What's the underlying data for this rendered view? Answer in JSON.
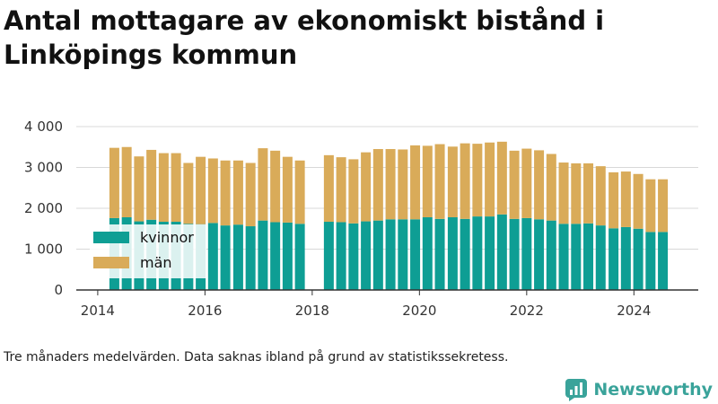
{
  "title": "Antal mottagare av ekonomiskt bistånd i Linköpings kommun",
  "footnote": "Tre månaders medelvärden. Data saknas ibland på grund av statistikssekretess.",
  "brand": {
    "name": "Newsworthy"
  },
  "colors": {
    "kvinnor": "#0e9e94",
    "man": "#d9ab59",
    "grid": "#d8d8d8",
    "axis": "#333333",
    "brand": "#3aa39a"
  },
  "chart_data": {
    "type": "bar",
    "stacked": true,
    "xlim": [
      2013.6,
      2025.2
    ],
    "ylim": [
      0,
      4000
    ],
    "xticks": [
      2014,
      2016,
      2018,
      2020,
      2022,
      2024
    ],
    "yticks": [
      {
        "value": 0,
        "label": "0"
      },
      {
        "value": 1000,
        "label": "1 000"
      },
      {
        "value": 2000,
        "label": "2 000"
      },
      {
        "value": 3000,
        "label": "3 000"
      },
      {
        "value": 4000,
        "label": "4 000"
      }
    ],
    "grid": true,
    "legend_position": "left",
    "x": [
      2014.31,
      2014.54,
      2014.77,
      2015.0,
      2015.23,
      2015.46,
      2015.69,
      2015.92,
      2016.15,
      2016.38,
      2016.62,
      2016.85,
      2017.08,
      2017.31,
      2017.54,
      2017.77,
      2018.31,
      2018.54,
      2018.77,
      2019.0,
      2019.23,
      2019.46,
      2019.69,
      2019.92,
      2020.15,
      2020.38,
      2020.62,
      2020.85,
      2021.08,
      2021.31,
      2021.54,
      2021.77,
      2022.0,
      2022.23,
      2022.46,
      2022.69,
      2022.92,
      2023.15,
      2023.38,
      2023.62,
      2023.85,
      2024.08,
      2024.31,
      2024.54
    ],
    "series": [
      {
        "name": "kvinnor",
        "values": [
          1760,
          1780,
          1680,
          1720,
          1670,
          1670,
          1620,
          1610,
          1640,
          1580,
          1600,
          1560,
          1700,
          1660,
          1650,
          1620,
          1670,
          1660,
          1630,
          1680,
          1700,
          1730,
          1730,
          1730,
          1780,
          1740,
          1780,
          1740,
          1800,
          1800,
          1850,
          1740,
          1760,
          1730,
          1700,
          1620,
          1620,
          1630,
          1580,
          1510,
          1540,
          1500,
          1420,
          1420
        ]
      },
      {
        "name": "män",
        "values": [
          1720,
          1720,
          1590,
          1710,
          1680,
          1680,
          1490,
          1650,
          1580,
          1590,
          1570,
          1550,
          1770,
          1750,
          1610,
          1550,
          1630,
          1590,
          1570,
          1690,
          1750,
          1720,
          1710,
          1810,
          1750,
          1830,
          1730,
          1850,
          1780,
          1810,
          1780,
          1670,
          1700,
          1690,
          1630,
          1500,
          1480,
          1470,
          1450,
          1370,
          1360,
          1340,
          1290,
          1290
        ]
      }
    ]
  }
}
